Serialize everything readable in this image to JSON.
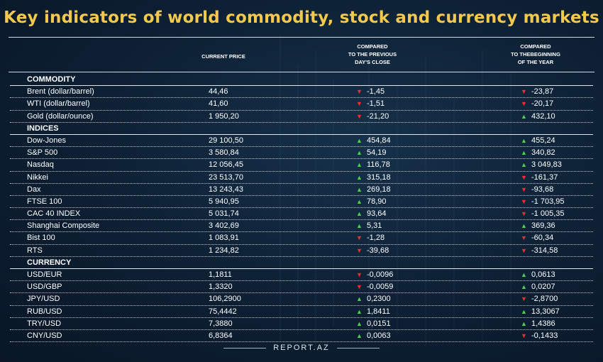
{
  "title": "Key indicators of world commodity, stock and currency markets",
  "headers": {
    "price": "CURRENT PRICE",
    "day": [
      "COMPARED",
      "TO THE PREVIOUS",
      "DAY'S CLOSE"
    ],
    "year": [
      "COMPARED",
      "TO THEBEGINNING",
      "OF THE YEAR"
    ]
  },
  "sections": [
    {
      "name": "COMMODITY",
      "rows": [
        {
          "name": "Brent (dollar/barrel)",
          "price": "44,46",
          "day": "-1,45",
          "day_dir": "down",
          "year": "-23,87",
          "year_dir": "down"
        },
        {
          "name": "WTI (dollar/barrel)",
          "price": "41,60",
          "day": "-1,51",
          "day_dir": "down",
          "year": "-20,17",
          "year_dir": "down"
        },
        {
          "name": "Gold (dollar/ounce)",
          "price": "1 950,20",
          "day": "-21,20",
          "day_dir": "down",
          "year": "432,10",
          "year_dir": "up"
        }
      ]
    },
    {
      "name": "INDICES",
      "rows": [
        {
          "name": "Dow-Jones",
          "price": "29 100,50",
          "day": "454,84",
          "day_dir": "up",
          "year": "455,24",
          "year_dir": "up"
        },
        {
          "name": "S&P 500",
          "price": "3 580,84",
          "day": "54,19",
          "day_dir": "up",
          "year": "340,82",
          "year_dir": "up"
        },
        {
          "name": "Nasdaq",
          "price": "12 056,45",
          "day": "116,78",
          "day_dir": "up",
          "year": "3 049,83",
          "year_dir": "up"
        },
        {
          "name": "Nikkei",
          "price": "23 513,70",
          "day": "315,18",
          "day_dir": "up",
          "year": "-161,37",
          "year_dir": "down"
        },
        {
          "name": "Dax",
          "price": "13 243,43",
          "day": "269,18",
          "day_dir": "up",
          "year": "-93,68",
          "year_dir": "down"
        },
        {
          "name": "FTSE 100",
          "price": "5 940,95",
          "day": "78,90",
          "day_dir": "up",
          "year": "-1 703,95",
          "year_dir": "down"
        },
        {
          "name": "CAC 40 INDEX",
          "price": "5 031,74",
          "day": "93,64",
          "day_dir": "up",
          "year": "-1 005,35",
          "year_dir": "down"
        },
        {
          "name": "Shanghai Composite",
          "price": "3 402,69",
          "day": "5,31",
          "day_dir": "up",
          "year": "369,36",
          "year_dir": "up"
        },
        {
          "name": "Bist 100",
          "price": "1 083,91",
          "day": "-1,28",
          "day_dir": "down",
          "year": "-60,34",
          "year_dir": "down"
        },
        {
          "name": "RTS",
          "price": "1 234,82",
          "day": "-39,68",
          "day_dir": "down",
          "year": "-314,58",
          "year_dir": "down"
        }
      ]
    },
    {
      "name": "CURRENCY",
      "rows": [
        {
          "name": "USD/EUR",
          "price": "1,1811",
          "day": "-0,0096",
          "day_dir": "down",
          "year": "0,0613",
          "year_dir": "up"
        },
        {
          "name": "USD/GBP",
          "price": "1,3320",
          "day": "-0,0059",
          "day_dir": "down",
          "year": "0,0207",
          "year_dir": "up"
        },
        {
          "name": "JPY/USD",
          "price": "106,2900",
          "day": "0,2300",
          "day_dir": "up",
          "year": "-2,8700",
          "year_dir": "down"
        },
        {
          "name": "RUB/USD",
          "price": "75,4442",
          "day": "1,8411",
          "day_dir": "up",
          "year": "13,3067",
          "year_dir": "up"
        },
        {
          "name": "TRY/USD",
          "price": "7,3880",
          "day": "0,0151",
          "day_dir": "up",
          "year": "1,4386",
          "year_dir": "up"
        },
        {
          "name": "CNY/USD",
          "price": "6,8364",
          "day": "0,0063",
          "day_dir": "up",
          "year": "-0,1433",
          "year_dir": "down"
        }
      ]
    }
  ],
  "footer": "REPORT.AZ",
  "colors": {
    "title": "#f2c94c",
    "up": "#4cd04f",
    "down": "#ff2b2b",
    "background": "#0d1f33"
  }
}
